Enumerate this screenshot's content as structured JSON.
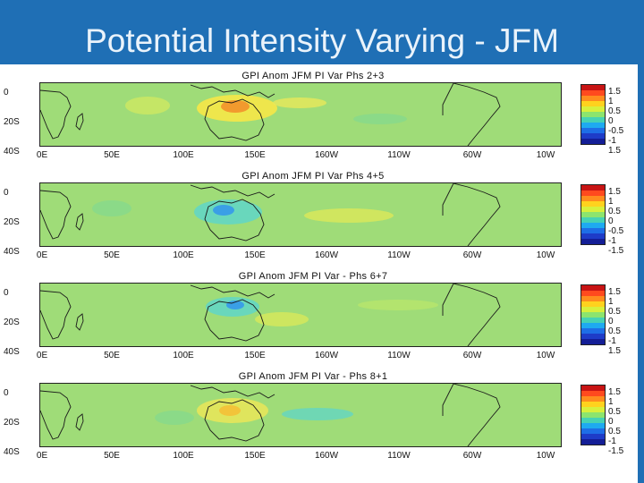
{
  "header": {
    "title": "Potential Intensity Varying - JFM"
  },
  "panels": [
    {
      "title": "GPI Anom JFM PI Var   Phs 2+3",
      "lat_ticks": [
        "0",
        "20S",
        "40S"
      ],
      "lon_ticks": [
        "0E",
        "50E",
        "100E",
        "150E",
        "160W",
        "110W",
        "60W",
        "10W"
      ],
      "colorbar_ticks": [
        "1.5",
        "1",
        "0.5",
        "0",
        "-0.5",
        "-1",
        "1.5"
      ]
    },
    {
      "title": "GPI Anom JFM PI Var   Phs 4+5",
      "lat_ticks": [
        "0",
        "20S",
        "40S"
      ],
      "lon_ticks": [
        "0E",
        "50E",
        "100E",
        "150E",
        "160W",
        "110W",
        "60W",
        "10W"
      ],
      "colorbar_ticks": [
        "1.5",
        "1",
        "0.5",
        "0",
        "-0.5",
        "-1",
        "-1.5"
      ]
    },
    {
      "title": "GPI Anom JFM PI Var - Phs 6+7",
      "lat_ticks": [
        "0",
        "20S",
        "40S"
      ],
      "lon_ticks": [
        "0E",
        "50E",
        "100E",
        "150E",
        "160W",
        "110W",
        "60W",
        "10W"
      ],
      "colorbar_ticks": [
        "1.5",
        "1",
        "0.5",
        "0",
        "0.5",
        "-1",
        "1.5"
      ]
    },
    {
      "title": "GPI Anom JFM PI Var - Phs 8+1",
      "lat_ticks": [
        "0",
        "20S",
        "40S"
      ],
      "lon_ticks": [
        "0E",
        "50E",
        "100E",
        "150E",
        "160W",
        "110W",
        "60W",
        "10W"
      ],
      "colorbar_ticks": [
        "1.5",
        "1",
        "0.5",
        "0",
        "0.5",
        "-1",
        "-1.5"
      ]
    }
  ],
  "colors": {
    "header": "#1f6fb5",
    "field_background": "#9fdc78",
    "positive_anomaly": "#f2e64a",
    "strong_positive": "#f29a2e",
    "negative_anomaly": "#5fd6c8",
    "strong_negative": "#3a9fe6",
    "coastline": "#1a1a1a"
  }
}
